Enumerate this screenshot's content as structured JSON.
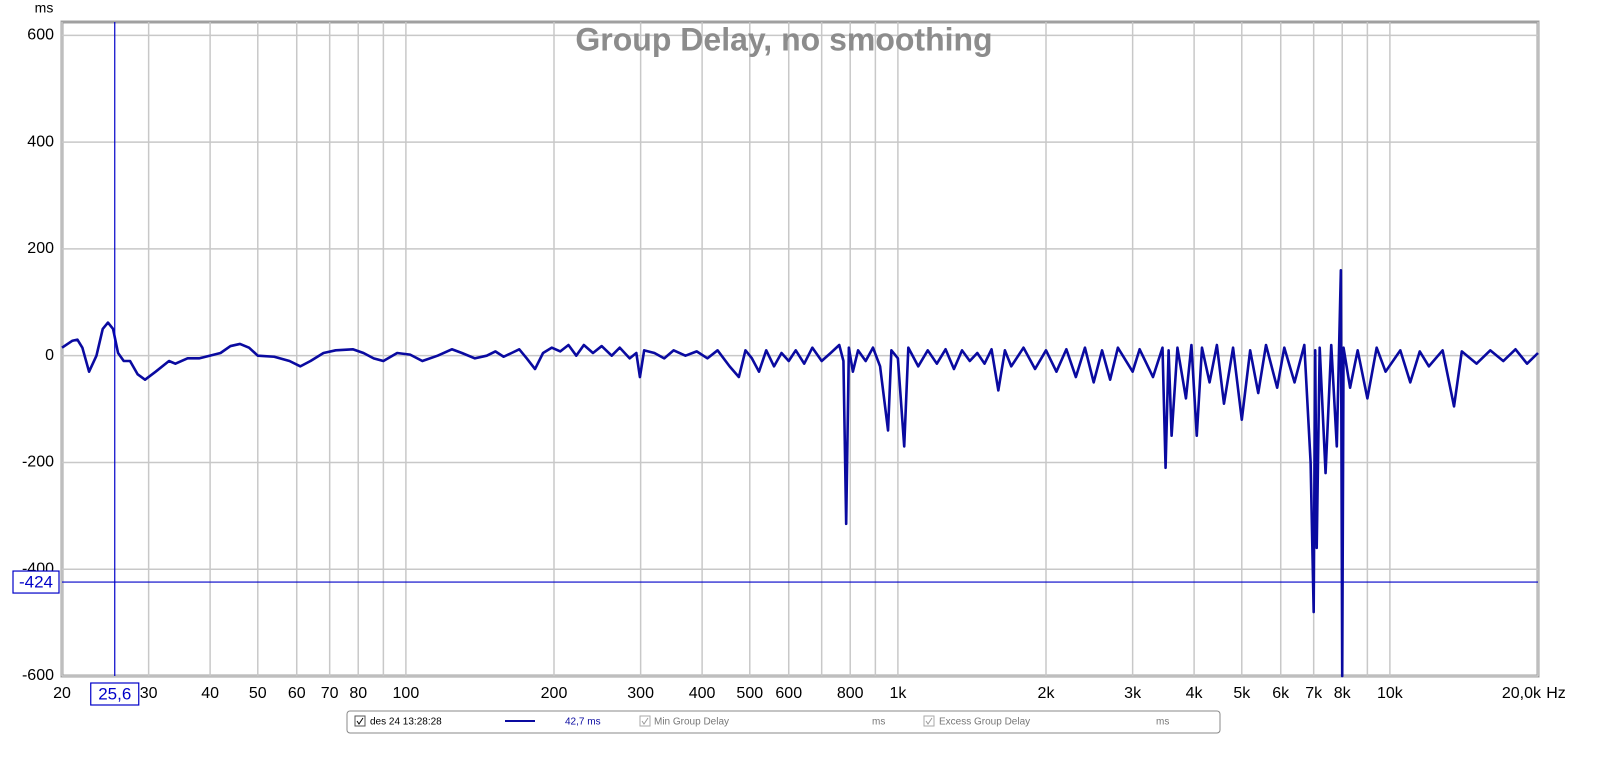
{
  "chart_data": {
    "type": "line",
    "title": "Group Delay, no smoothing",
    "y_label": "ms",
    "x_unit": "Hz",
    "log_x": true,
    "grid": true,
    "xlim": [
      20,
      20000
    ],
    "ylim": [
      -600,
      625
    ],
    "xticks": [
      20,
      30,
      40,
      50,
      60,
      70,
      80,
      100,
      200,
      300,
      400,
      500,
      600,
      800,
      {
        "value": 1000,
        "label": "1k"
      },
      {
        "value": 2000,
        "label": "2k"
      },
      {
        "value": 3000,
        "label": "3k"
      },
      {
        "value": 4000,
        "label": "4k"
      },
      {
        "value": 5000,
        "label": "5k"
      },
      {
        "value": 6000,
        "label": "6k"
      },
      {
        "value": 7000,
        "label": "7k"
      },
      {
        "value": 8000,
        "label": "8k"
      },
      {
        "value": 10000,
        "label": "10k"
      },
      {
        "value": 20000,
        "label": "20,0k"
      }
    ],
    "minor_xticks": [
      90,
      700,
      900,
      9000
    ],
    "yticks": [
      600,
      400,
      200,
      0,
      -200,
      -400,
      -600
    ],
    "x": [
      20,
      21,
      21.5,
      22,
      22.7,
      23.5,
      24.2,
      24.8,
      25.4,
      26,
      26.7,
      27.5,
      28.5,
      29.5,
      31,
      33,
      34,
      36,
      38,
      40,
      42,
      44,
      46,
      48,
      50,
      54,
      58,
      61,
      64,
      68,
      72,
      78,
      82,
      86,
      90,
      96,
      102,
      108,
      116,
      124,
      130,
      138,
      146,
      152,
      158,
      164,
      170,
      176,
      183,
      190,
      198,
      206,
      214,
      222,
      230,
      240,
      250,
      262,
      272,
      285,
      294,
      299,
      305,
      320,
      335,
      350,
      370,
      390,
      410,
      430,
      455,
      475,
      490,
      505,
      522,
      540,
      560,
      580,
      600,
      620,
      645,
      670,
      700,
      730,
      760,
      775,
      785,
      795,
      810,
      830,
      860,
      890,
      920,
      955,
      970,
      1000,
      1030,
      1050,
      1100,
      1150,
      1200,
      1250,
      1300,
      1350,
      1400,
      1450,
      1500,
      1550,
      1600,
      1650,
      1700,
      1800,
      1900,
      2000,
      2100,
      2200,
      2300,
      2400,
      2500,
      2600,
      2700,
      2800,
      3000,
      3100,
      3300,
      3450,
      3500,
      3550,
      3600,
      3700,
      3850,
      3950,
      4050,
      4150,
      4300,
      4450,
      4600,
      4800,
      5000,
      5200,
      5400,
      5600,
      5900,
      6100,
      6400,
      6700,
      6900,
      7000,
      7050,
      7100,
      7200,
      7400,
      7600,
      7800,
      7950,
      8000,
      8050,
      8300,
      8600,
      9000,
      9400,
      9800,
      10500,
      11000,
      11500,
      12000,
      12800,
      13500,
      14000,
      15000,
      16000,
      17000,
      18000,
      19000,
      20000
    ],
    "series": [
      {
        "name": "des 24 13:28:28",
        "color": "#0a0aa0",
        "readout": "42,7 ms",
        "values": [
          15,
          28,
          30,
          15,
          -30,
          0,
          50,
          62,
          50,
          5,
          -10,
          -10,
          -35,
          -45,
          -30,
          -10,
          -15,
          -5,
          -5,
          0,
          5,
          18,
          22,
          15,
          0,
          -2,
          -10,
          -20,
          -10,
          5,
          10,
          12,
          5,
          -5,
          -10,
          5,
          2,
          -10,
          0,
          12,
          5,
          -5,
          0,
          8,
          -2,
          5,
          12,
          -5,
          -25,
          5,
          15,
          8,
          20,
          0,
          20,
          5,
          18,
          0,
          15,
          -5,
          5,
          -40,
          10,
          5,
          -5,
          10,
          0,
          8,
          -5,
          10,
          -20,
          -40,
          10,
          -5,
          -30,
          10,
          -20,
          5,
          -10,
          10,
          -15,
          15,
          -10,
          5,
          20,
          -10,
          -315,
          15,
          -30,
          10,
          -10,
          15,
          -20,
          -140,
          10,
          -5,
          -170,
          15,
          -20,
          10,
          -15,
          12,
          -25,
          10,
          -10,
          5,
          -15,
          12,
          -65,
          10,
          -20,
          15,
          -25,
          10,
          -30,
          12,
          -40,
          15,
          -50,
          10,
          -45,
          15,
          -30,
          12,
          -40,
          15,
          -210,
          10,
          -150,
          15,
          -80,
          20,
          -150,
          15,
          -50,
          20,
          -90,
          15,
          -120,
          10,
          -70,
          20,
          -60,
          15,
          -50,
          20,
          -200,
          -480,
          10,
          -360,
          15,
          -220,
          20,
          -170,
          160,
          -600,
          15,
          -60,
          10,
          -80,
          15,
          -30,
          10,
          -50,
          8,
          -20,
          10,
          -95,
          8,
          -15,
          10,
          -10,
          12,
          -15,
          5
        ]
      }
    ],
    "cursor": {
      "x": {
        "value": 25.6,
        "label": "25,6"
      },
      "y": -424,
      "color": "#0000c8"
    },
    "inactive_series": [
      {
        "name": "Min Group Delay",
        "unit": "ms"
      },
      {
        "name": "Excess Group Delay",
        "unit": "ms"
      }
    ]
  }
}
